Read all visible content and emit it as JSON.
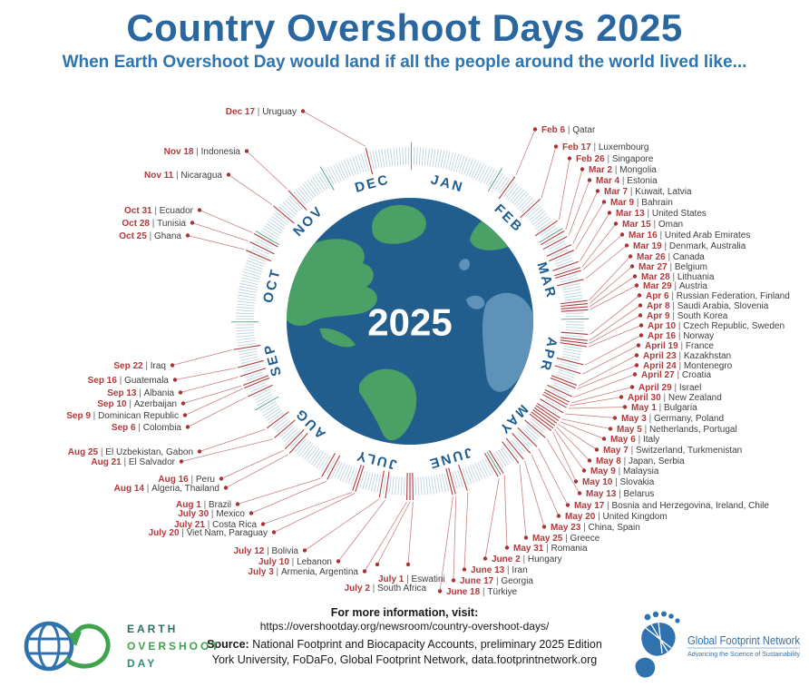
{
  "header": {
    "title": "Country Overshoot Days 2025",
    "subtitle": "When Earth Overshoot Day would land if all the people around the world lived like..."
  },
  "wheel": {
    "center_year": "2025",
    "months": [
      "JAN",
      "FEB",
      "MAR",
      "APR",
      "MAY",
      "JUNE",
      "JULY",
      "AUG",
      "SEP",
      "OCT",
      "NOV",
      "DEC"
    ]
  },
  "entries": [
    {
      "date": "Feb 6",
      "countries": "Qatar",
      "day": 37
    },
    {
      "date": "Feb 17",
      "countries": "Luxembourg",
      "day": 48
    },
    {
      "date": "Feb 26",
      "countries": "Singapore",
      "day": 57
    },
    {
      "date": "Mar 2",
      "countries": "Mongolia",
      "day": 61
    },
    {
      "date": "Mar 4",
      "countries": "Estonia",
      "day": 63
    },
    {
      "date": "Mar 7",
      "countries": "Kuwait, Latvia",
      "day": 66
    },
    {
      "date": "Mar 9",
      "countries": "Bahrain",
      "day": 68
    },
    {
      "date": "Mar 13",
      "countries": "United States",
      "day": 72
    },
    {
      "date": "Mar 15",
      "countries": "Oman",
      "day": 74
    },
    {
      "date": "Mar 16",
      "countries": "United Arab Emirates",
      "day": 75
    },
    {
      "date": "Mar 19",
      "countries": "Denmark, Australia",
      "day": 78
    },
    {
      "date": "Mar 26",
      "countries": "Canada",
      "day": 85
    },
    {
      "date": "Mar 27",
      "countries": "Belgium",
      "day": 86
    },
    {
      "date": "Mar 28",
      "countries": "Lithuania",
      "day": 87
    },
    {
      "date": "Mar 29",
      "countries": "Austria",
      "day": 88
    },
    {
      "date": "Apr 6",
      "countries": "Russian Federation, Finland",
      "day": 96
    },
    {
      "date": "Apr 8",
      "countries": "Saudi Arabia, Slovenia",
      "day": 98
    },
    {
      "date": "Apr 9",
      "countries": "South Korea",
      "day": 99
    },
    {
      "date": "Apr 10",
      "countries": "Czech Republic, Sweden",
      "day": 100
    },
    {
      "date": "Apr 16",
      "countries": "Norway",
      "day": 106
    },
    {
      "date": "April 19",
      "countries": "France",
      "day": 109
    },
    {
      "date": "April 23",
      "countries": "Kazakhstan",
      "day": 113
    },
    {
      "date": "April 24",
      "countries": "Montenegro",
      "day": 114
    },
    {
      "date": "April 27",
      "countries": "Croatia",
      "day": 117
    },
    {
      "date": "April 29",
      "countries": "Israel",
      "day": 119
    },
    {
      "date": "April 30",
      "countries": "New Zealand",
      "day": 120
    },
    {
      "date": "May 1",
      "countries": "Bulgaria",
      "day": 121
    },
    {
      "date": "May 3",
      "countries": "Germany, Poland",
      "day": 123
    },
    {
      "date": "May 5",
      "countries": "Netherlands, Portugal",
      "day": 125
    },
    {
      "date": "May 6",
      "countries": "Italy",
      "day": 126
    },
    {
      "date": "May 7",
      "countries": "Switzerland, Turkmenistan",
      "day": 127
    },
    {
      "date": "May 8",
      "countries": "Japan, Serbia",
      "day": 128
    },
    {
      "date": "May 9",
      "countries": "Malaysia",
      "day": 129
    },
    {
      "date": "May 10",
      "countries": "Slovakia",
      "day": 130
    },
    {
      "date": "May 13",
      "countries": "Belarus",
      "day": 133
    },
    {
      "date": "May 17",
      "countries": "Bosnia and Herzegovina, Ireland, Chile",
      "day": 137
    },
    {
      "date": "May 20",
      "countries": "United Kingdom",
      "day": 140
    },
    {
      "date": "May 23",
      "countries": "China, Spain",
      "day": 143
    },
    {
      "date": "May 25",
      "countries": "Greece",
      "day": 145
    },
    {
      "date": "May 31",
      "countries": "Romania",
      "day": 151
    },
    {
      "date": "June 2",
      "countries": "Hungary",
      "day": 153
    },
    {
      "date": "June 13",
      "countries": "Iran",
      "day": 164
    },
    {
      "date": "June 17",
      "countries": "Georgia",
      "day": 168
    },
    {
      "date": "June 18",
      "countries": "Türkiye",
      "day": 169
    },
    {
      "date": "July 1",
      "countries": "Eswatini",
      "day": 182
    },
    {
      "date": "July 2",
      "countries": "South Africa",
      "day": 183
    },
    {
      "date": "July 3",
      "countries": "Armenia, Argentina",
      "day": 184
    },
    {
      "date": "July 10",
      "countries": "Lebanon",
      "day": 191
    },
    {
      "date": "July 12",
      "countries": "Bolivia",
      "day": 193
    },
    {
      "date": "July 20",
      "countries": "Viet Nam, Paraguay",
      "day": 201
    },
    {
      "date": "July 21",
      "countries": "Costa Rica",
      "day": 202
    },
    {
      "date": "July 30",
      "countries": "Mexico",
      "day": 211
    },
    {
      "date": "Aug 1",
      "countries": "Brazil",
      "day": 213
    },
    {
      "date": "Aug 14",
      "countries": "Algeria, Thailand",
      "day": 226
    },
    {
      "date": "Aug 16",
      "countries": "Peru",
      "day": 228
    },
    {
      "date": "Aug 21",
      "countries": "El Salvador",
      "day": 233
    },
    {
      "date": "Aug 25",
      "countries": "El Uzbekistan, Gabon",
      "day": 237
    },
    {
      "date": "Sep 6",
      "countries": "Colombia",
      "day": 249
    },
    {
      "date": "Sep 9",
      "countries": "Dominican Republic",
      "day": 252
    },
    {
      "date": "Sep 10",
      "countries": "Azerbaijan",
      "day": 253
    },
    {
      "date": "Sep 13",
      "countries": "Albania",
      "day": 256
    },
    {
      "date": "Sep 16",
      "countries": "Guatemala",
      "day": 259
    },
    {
      "date": "Sep 22",
      "countries": "Iraq",
      "day": 265
    },
    {
      "date": "Oct 25",
      "countries": "Ghana",
      "day": 298
    },
    {
      "date": "Oct 28",
      "countries": "Tunisia",
      "day": 301
    },
    {
      "date": "Oct 31",
      "countries": "Ecuador",
      "day": 304
    },
    {
      "date": "Nov 11",
      "countries": "Nicaragua",
      "day": 315
    },
    {
      "date": "Nov 18",
      "countries": "Indonesia",
      "day": 322
    },
    {
      "date": "Dec 17",
      "countries": "Uruguay",
      "day": 351
    }
  ],
  "footer": {
    "info_heading": "For more information, visit:",
    "info_url": "https://overshootday.org/newsroom/country-overshoot-days/",
    "source_label": "Source:",
    "source_line1": " National Footprint and Biocapacity Accounts, preliminary 2025 Edition",
    "source_line2": "York University, FoDaFo, Global Footprint Network, data.footprintnetwork.org"
  },
  "logos": {
    "eod": {
      "line1": "EARTH",
      "line2": "OVERSHOOT",
      "line3": "DAY"
    },
    "gfn": {
      "name": "Global Footprint Network",
      "tagline": "Advancing the Science of Sustainability"
    }
  },
  "colors": {
    "title_blue": "#29679e",
    "subtitle_blue": "#2f74ac",
    "date_red": "#b03a3c",
    "country_gray": "#3e3e3e",
    "separator_gray": "#6b6b6b",
    "line_red": "#c98384",
    "dot_red": "#a93336",
    "tick_blue": "#b7cedd",
    "tick_teal": "#2f8f72",
    "month_blue": "#1e5d92",
    "ocean_blue": "#215e8e",
    "land_green": "#4aa065",
    "land_slate": "#5e92b8",
    "logo_green": "#3fa34d",
    "logo_teal": "#2e8c7e",
    "logo_dark_teal": "#2e6e62",
    "logo_blue": "#2f72ae"
  }
}
